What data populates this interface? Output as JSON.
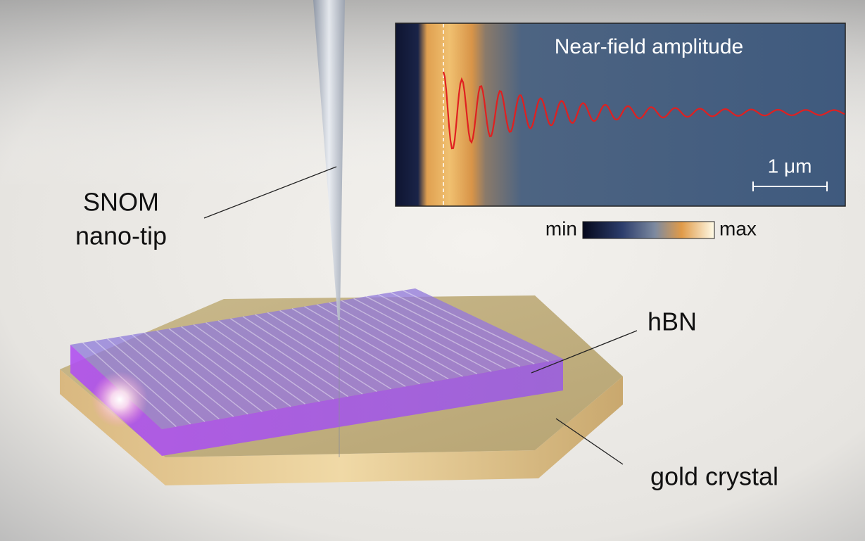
{
  "labels": {
    "tip_line1": "SNOM",
    "tip_line2": "nano-tip",
    "hbn": "hBN",
    "gold": "gold crystal"
  },
  "inset": {
    "title": "Near-field amplitude",
    "scale_bar": "1 μm"
  },
  "colorbar": {
    "min": "min",
    "max": "max"
  }
}
